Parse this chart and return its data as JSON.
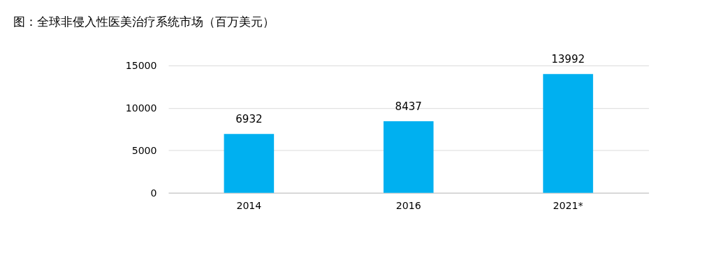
{
  "chart_data": {
    "type": "bar",
    "title": "图：全球非侵入性医美治疗系统市场（百万美元）",
    "categories": [
      "2014",
      "2016",
      "2021*"
    ],
    "values": [
      6932,
      8437,
      13992
    ],
    "color": "#00b0f0",
    "ylim": [
      0,
      15000
    ],
    "yticks": [
      0,
      5000,
      10000,
      15000
    ],
    "grid": "y",
    "data_labels": true
  }
}
